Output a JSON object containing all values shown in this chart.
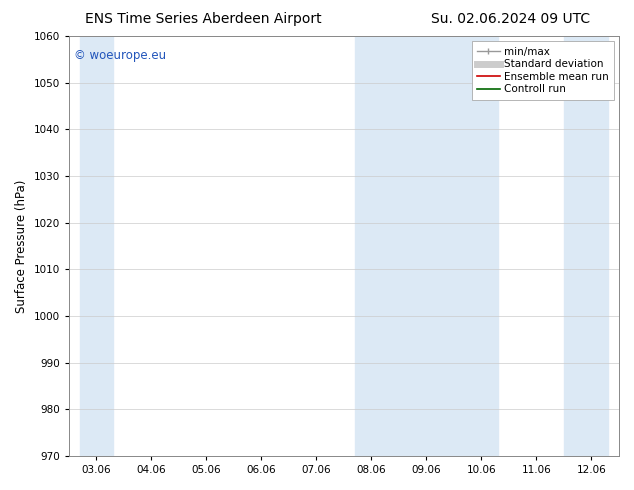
{
  "title": "ENS Time Series Aberdeen Airport",
  "title_right": "Su. 02.06.2024 09 UTC",
  "ylabel": "Surface Pressure (hPa)",
  "ylim": [
    970,
    1060
  ],
  "yticks": [
    970,
    980,
    990,
    1000,
    1010,
    1020,
    1030,
    1040,
    1050,
    1060
  ],
  "xtick_labels": [
    "03.06",
    "04.06",
    "05.06",
    "06.06",
    "07.06",
    "08.06",
    "09.06",
    "10.06",
    "11.06",
    "12.06"
  ],
  "n_ticks": 10,
  "xlim": [
    0,
    9
  ],
  "shaded_bands": [
    {
      "xmin": -0.3,
      "xmax": 0.3
    },
    {
      "xmin": 4.7,
      "xmax": 7.3
    },
    {
      "xmin": 8.5,
      "xmax": 9.3
    }
  ],
  "band_color": "#dce9f5",
  "background_color": "#ffffff",
  "watermark_text": "© woeurope.eu",
  "watermark_color": "#2255bb",
  "legend_items": [
    {
      "label": "min/max",
      "color": "#999999",
      "lw": 1
    },
    {
      "label": "Standard deviation",
      "color": "#cccccc",
      "lw": 5
    },
    {
      "label": "Ensemble mean run",
      "color": "#cc0000",
      "lw": 1.2
    },
    {
      "label": "Controll run",
      "color": "#006600",
      "lw": 1.2
    }
  ],
  "title_fontsize": 10,
  "label_fontsize": 8.5,
  "tick_fontsize": 7.5,
  "watermark_fontsize": 8.5,
  "legend_fontsize": 7.5
}
